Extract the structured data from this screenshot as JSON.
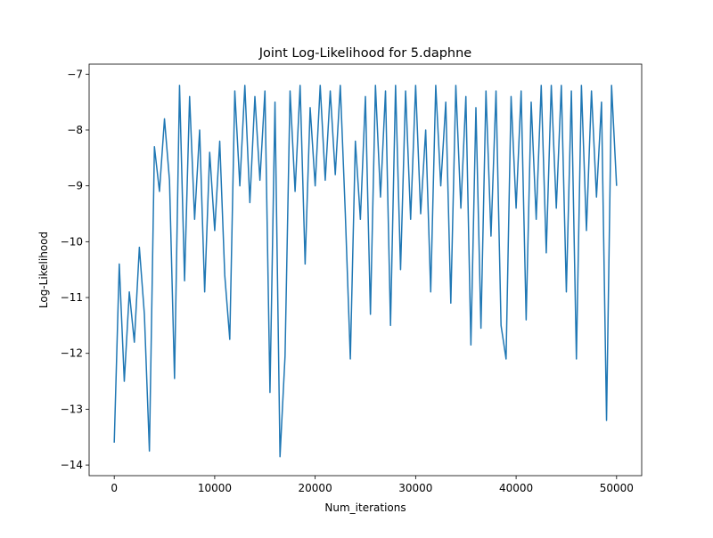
{
  "chart_data": {
    "type": "line",
    "title": "Joint Log-Likelihood for 5.daphne",
    "xlabel": "Num_iterations",
    "ylabel": "Log-Likelihood",
    "color": "#1f77b4",
    "x": [
      0,
      500,
      1000,
      1500,
      2000,
      2500,
      3000,
      3500,
      4000,
      4500,
      5000,
      5500,
      6000,
      6500,
      7000,
      7500,
      8000,
      8500,
      9000,
      9500,
      10000,
      10500,
      11000,
      11500,
      12000,
      12500,
      13000,
      13500,
      14000,
      14500,
      15000,
      15500,
      16000,
      16500,
      17000,
      17500,
      18000,
      18500,
      19000,
      19500,
      20000,
      20500,
      21000,
      21500,
      22000,
      22500,
      23000,
      23500,
      24000,
      24500,
      25000,
      25500,
      26000,
      26500,
      27000,
      27500,
      28000,
      28500,
      29000,
      29500,
      30000,
      30500,
      31000,
      31500,
      32000,
      32500,
      33000,
      33500,
      34000,
      34500,
      35000,
      35500,
      36000,
      36500,
      37000,
      37500,
      38000,
      38500,
      39000,
      39500,
      40000,
      40500,
      41000,
      41500,
      42000,
      42500,
      43000,
      43500,
      44000,
      44500,
      45000,
      45500,
      46000,
      46500,
      47000,
      47500,
      48000,
      48500,
      49000,
      49500,
      50000
    ],
    "values": [
      -13.6,
      -10.4,
      -12.5,
      -10.9,
      -11.8,
      -10.1,
      -11.3,
      -13.75,
      -8.3,
      -9.1,
      -7.8,
      -8.9,
      -12.45,
      -7.2,
      -10.7,
      -7.4,
      -9.6,
      -8.0,
      -10.9,
      -8.4,
      -9.8,
      -8.2,
      -10.6,
      -11.75,
      -7.3,
      -9.0,
      -7.2,
      -9.3,
      -7.4,
      -8.9,
      -7.3,
      -12.7,
      -7.5,
      -13.85,
      -12.05,
      -7.3,
      -9.1,
      -7.2,
      -10.4,
      -7.6,
      -9.0,
      -7.2,
      -8.9,
      -7.3,
      -8.8,
      -7.2,
      -9.5,
      -12.1,
      -8.2,
      -9.6,
      -7.4,
      -11.3,
      -7.2,
      -9.2,
      -7.3,
      -11.5,
      -7.2,
      -10.5,
      -7.3,
      -9.6,
      -7.2,
      -9.5,
      -8.0,
      -10.9,
      -7.2,
      -9.0,
      -7.5,
      -11.1,
      -7.2,
      -9.4,
      -7.4,
      -11.85,
      -7.6,
      -11.55,
      -7.3,
      -9.9,
      -7.3,
      -11.5,
      -12.1,
      -7.4,
      -9.4,
      -7.3,
      -11.4,
      -7.5,
      -9.6,
      -7.2,
      -10.2,
      -7.2,
      -9.4,
      -7.2,
      -10.9,
      -7.3,
      -12.1,
      -7.2,
      -9.8,
      -7.3,
      -9.2,
      -7.5,
      -13.2,
      -7.2,
      -9.0
    ],
    "xlim": [
      -2500,
      52500
    ],
    "ylim": [
      -14.19,
      -6.82
    ],
    "xticks": [
      0,
      10000,
      20000,
      30000,
      40000,
      50000
    ],
    "yticks": [
      {
        "value": -14,
        "label": "−14"
      },
      {
        "value": -13,
        "label": "−13"
      },
      {
        "value": -12,
        "label": "−12"
      },
      {
        "value": -11,
        "label": "−11"
      },
      {
        "value": -10,
        "label": "−10"
      },
      {
        "value": -9,
        "label": "−9"
      },
      {
        "value": -8,
        "label": "−8"
      },
      {
        "value": -7,
        "label": "−7"
      }
    ]
  }
}
